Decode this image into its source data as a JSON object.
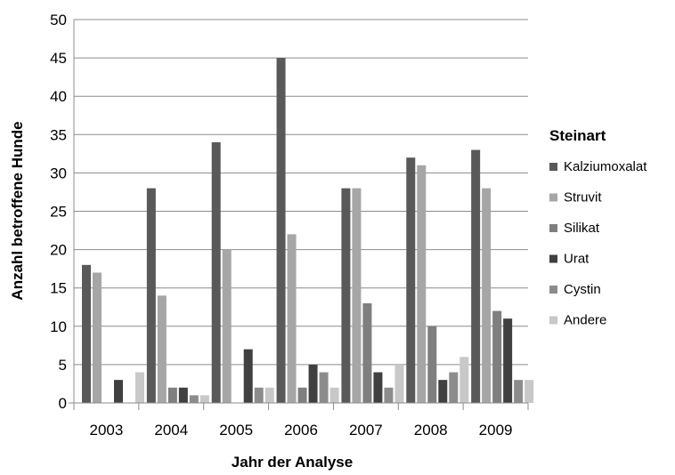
{
  "chart_data": {
    "type": "bar",
    "title": "",
    "xlabel": "Jahr der Analyse",
    "ylabel": "Anzahl betroffene Hunde",
    "ylim": [
      0,
      50
    ],
    "yticks": [
      0,
      5,
      10,
      15,
      20,
      25,
      30,
      35,
      40,
      45,
      50
    ],
    "grid": true,
    "legend_title": "Steinart",
    "legend_position": "right",
    "categories": [
      "2003",
      "2004",
      "2005",
      "2006",
      "2007",
      "2008",
      "2009"
    ],
    "series": [
      {
        "name": "Kalziumoxalat",
        "color": "#595959",
        "values": [
          18,
          28,
          34,
          45,
          28,
          32,
          33
        ]
      },
      {
        "name": "Struvit",
        "color": "#a6a6a6",
        "values": [
          17,
          14,
          20,
          22,
          28,
          31,
          28
        ]
      },
      {
        "name": "Silikat",
        "color": "#7f7f7f",
        "values": [
          0,
          2,
          0,
          2,
          13,
          10,
          12
        ]
      },
      {
        "name": "Urat",
        "color": "#404040",
        "values": [
          3,
          2,
          7,
          5,
          4,
          3,
          11
        ]
      },
      {
        "name": "Cystin",
        "color": "#8c8c8c",
        "values": [
          0,
          1,
          2,
          4,
          2,
          4,
          3
        ]
      },
      {
        "name": "Andere",
        "color": "#c8c8c8",
        "values": [
          4,
          1,
          2,
          2,
          5,
          6,
          3
        ]
      }
    ]
  }
}
